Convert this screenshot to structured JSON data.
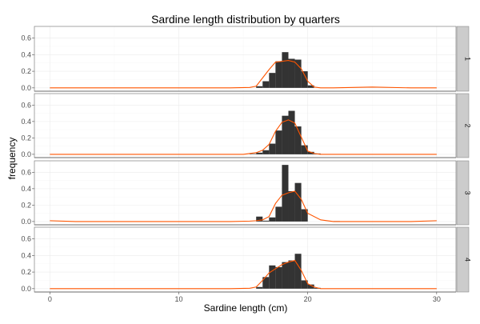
{
  "chart_data": {
    "type": "bar",
    "title": "Sardine length distribution by quarters",
    "xlabel": "Sardine length (cm)",
    "ylabel": "frequency",
    "xlim": [
      -1.2,
      31.5
    ],
    "ylim": [
      -0.04,
      0.74
    ],
    "x_ticks": [
      0,
      10,
      20,
      30
    ],
    "y_ticks": [
      0.0,
      0.2,
      0.4,
      0.6
    ],
    "x_tick_labels": [
      "0",
      "10",
      "20",
      "30"
    ],
    "y_tick_labels": [
      "0.0",
      "0.2",
      "0.4",
      "0.6"
    ],
    "grid": true,
    "bar_color": "#333333",
    "line_color": "#ff5500",
    "bin_width": 0.5,
    "panels": [
      {
        "strip": "1",
        "bars": [
          {
            "x": 16.0,
            "value": 0.02
          },
          {
            "x": 16.5,
            "value": 0.08
          },
          {
            "x": 17.0,
            "value": 0.18
          },
          {
            "x": 17.5,
            "value": 0.32
          },
          {
            "x": 18.0,
            "value": 0.43
          },
          {
            "x": 18.5,
            "value": 0.35
          },
          {
            "x": 19.0,
            "value": 0.34
          },
          {
            "x": 19.5,
            "value": 0.2
          },
          {
            "x": 20.0,
            "value": 0.03
          }
        ],
        "curve": {
          "x": [
            0,
            4,
            8,
            12,
            14,
            15.5,
            16,
            16.5,
            17,
            17.5,
            18,
            18.5,
            19,
            19.5,
            20,
            20.5,
            21,
            22,
            25,
            28,
            30
          ],
          "y": [
            0.0,
            0.0,
            0.0,
            0.0,
            0.0,
            0.005,
            0.02,
            0.12,
            0.22,
            0.31,
            0.32,
            0.33,
            0.31,
            0.23,
            0.08,
            0.01,
            0.0,
            0.0,
            0.01,
            0.0,
            0.0
          ]
        }
      },
      {
        "strip": "2",
        "bars": [
          {
            "x": 15.5,
            "value": 0.005
          },
          {
            "x": 16.0,
            "value": 0.02
          },
          {
            "x": 16.5,
            "value": 0.05
          },
          {
            "x": 17.0,
            "value": 0.13
          },
          {
            "x": 17.5,
            "value": 0.29
          },
          {
            "x": 18.0,
            "value": 0.47
          },
          {
            "x": 18.5,
            "value": 0.53
          },
          {
            "x": 19.0,
            "value": 0.34
          },
          {
            "x": 19.5,
            "value": 0.11
          },
          {
            "x": 20.0,
            "value": 0.03
          },
          {
            "x": 20.5,
            "value": 0.01
          }
        ],
        "curve": {
          "x": [
            0,
            4,
            8,
            12,
            14,
            15,
            16,
            16.5,
            17,
            17.5,
            18,
            18.5,
            19,
            19.5,
            20,
            20.5,
            21,
            25,
            30
          ],
          "y": [
            0.0,
            0.0,
            0.0,
            0.0,
            0.0,
            0.0,
            0.02,
            0.05,
            0.12,
            0.28,
            0.39,
            0.42,
            0.38,
            0.21,
            0.04,
            0.01,
            0.0,
            0.0,
            0.0
          ]
        }
      },
      {
        "strip": "3",
        "bars": [
          {
            "x": 16.0,
            "value": 0.06
          },
          {
            "x": 16.5,
            "value": 0.01
          },
          {
            "x": 17.0,
            "value": 0.05
          },
          {
            "x": 17.5,
            "value": 0.18
          },
          {
            "x": 18.0,
            "value": 0.69
          },
          {
            "x": 18.5,
            "value": 0.37
          },
          {
            "x": 19.0,
            "value": 0.47
          },
          {
            "x": 19.5,
            "value": 0.15
          },
          {
            "x": 22.0,
            "value": 0.005
          }
        ],
        "curve": {
          "x": [
            0,
            2,
            5,
            8,
            10,
            12,
            14,
            15.5,
            16,
            16.5,
            17,
            17.5,
            18,
            18.5,
            19,
            19.5,
            20,
            21,
            22,
            25,
            28,
            30
          ],
          "y": [
            0.01,
            0.0,
            0.0,
            0.0,
            0.0,
            0.0,
            0.0,
            0.005,
            0.01,
            0.02,
            0.06,
            0.22,
            0.32,
            0.35,
            0.37,
            0.27,
            0.1,
            0.02,
            0.0,
            0.0,
            0.0,
            0.01
          ]
        }
      },
      {
        "strip": "4",
        "bars": [
          {
            "x": 16.0,
            "value": 0.02
          },
          {
            "x": 16.5,
            "value": 0.14
          },
          {
            "x": 17.0,
            "value": 0.28
          },
          {
            "x": 17.5,
            "value": 0.26
          },
          {
            "x": 18.0,
            "value": 0.32
          },
          {
            "x": 18.5,
            "value": 0.34
          },
          {
            "x": 19.0,
            "value": 0.42
          },
          {
            "x": 19.5,
            "value": 0.1
          },
          {
            "x": 20.0,
            "value": 0.05
          },
          {
            "x": 20.5,
            "value": 0.01
          }
        ],
        "curve": {
          "x": [
            0,
            4,
            8,
            12,
            14,
            15.5,
            16,
            16.5,
            17,
            17.5,
            18,
            18.5,
            19,
            19.5,
            20,
            20.5,
            21,
            25,
            30
          ],
          "y": [
            0.0,
            0.0,
            0.0,
            0.0,
            0.0,
            0.005,
            0.02,
            0.1,
            0.19,
            0.24,
            0.29,
            0.32,
            0.34,
            0.22,
            0.06,
            0.02,
            0.0,
            0.0,
            0.0
          ]
        }
      }
    ]
  }
}
